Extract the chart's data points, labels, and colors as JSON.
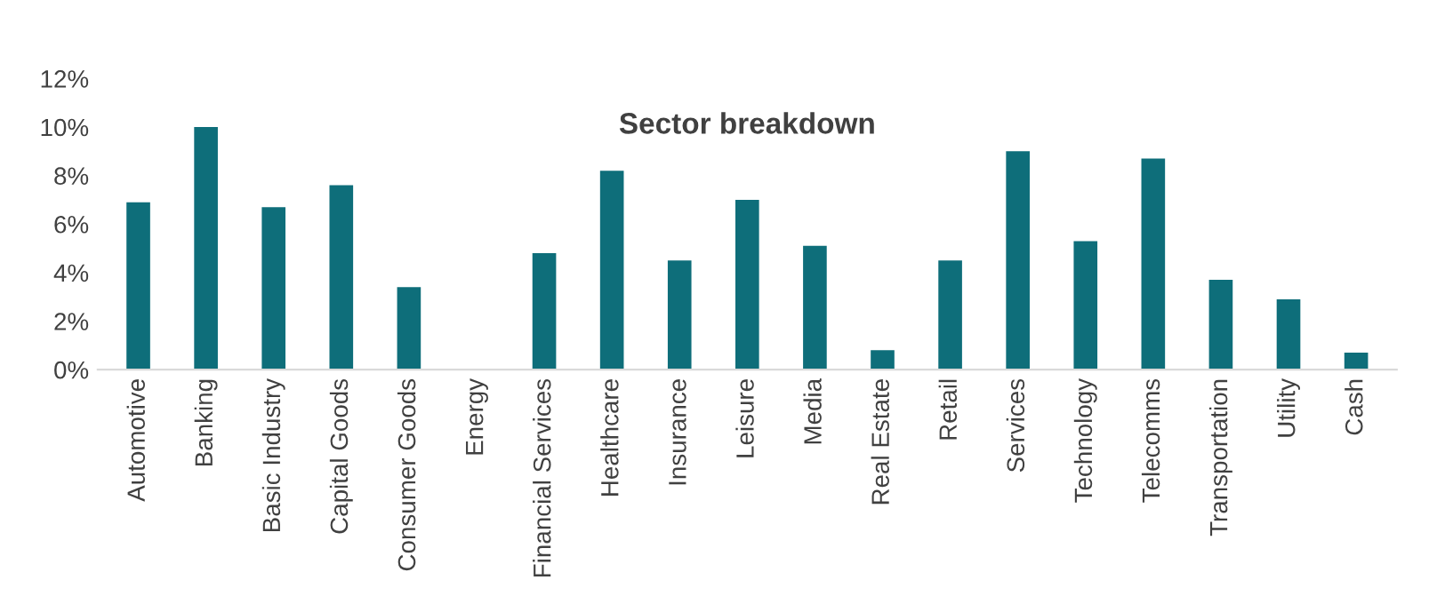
{
  "chart_data": {
    "type": "bar",
    "title": "Sector breakdown",
    "categories": [
      "Automotive",
      "Banking",
      "Basic Industry",
      "Capital Goods",
      "Consumer Goods",
      "Energy",
      "Financial Services",
      "Healthcare",
      "Insurance",
      "Leisure",
      "Media",
      "Real Estate",
      "Retail",
      "Services",
      "Technology",
      "Telecomms",
      "Transportation",
      "Utility",
      "Cash"
    ],
    "values": [
      6.9,
      10.0,
      6.7,
      7.6,
      3.4,
      0,
      4.8,
      8.2,
      4.5,
      7.0,
      5.1,
      0.8,
      4.5,
      9.0,
      5.3,
      8.7,
      3.7,
      2.9,
      0.7
    ],
    "color": "#0e6e7a",
    "ylim": [
      0,
      12
    ],
    "yticks": [
      {
        "value": 0,
        "label": "0%"
      },
      {
        "value": 2,
        "label": "2%"
      },
      {
        "value": 4,
        "label": "4%"
      },
      {
        "value": 6,
        "label": "6%"
      },
      {
        "value": 8,
        "label": "8%"
      },
      {
        "value": 10,
        "label": "10%"
      },
      {
        "value": 12,
        "label": "12%"
      }
    ],
    "grid": false,
    "legend": false
  }
}
